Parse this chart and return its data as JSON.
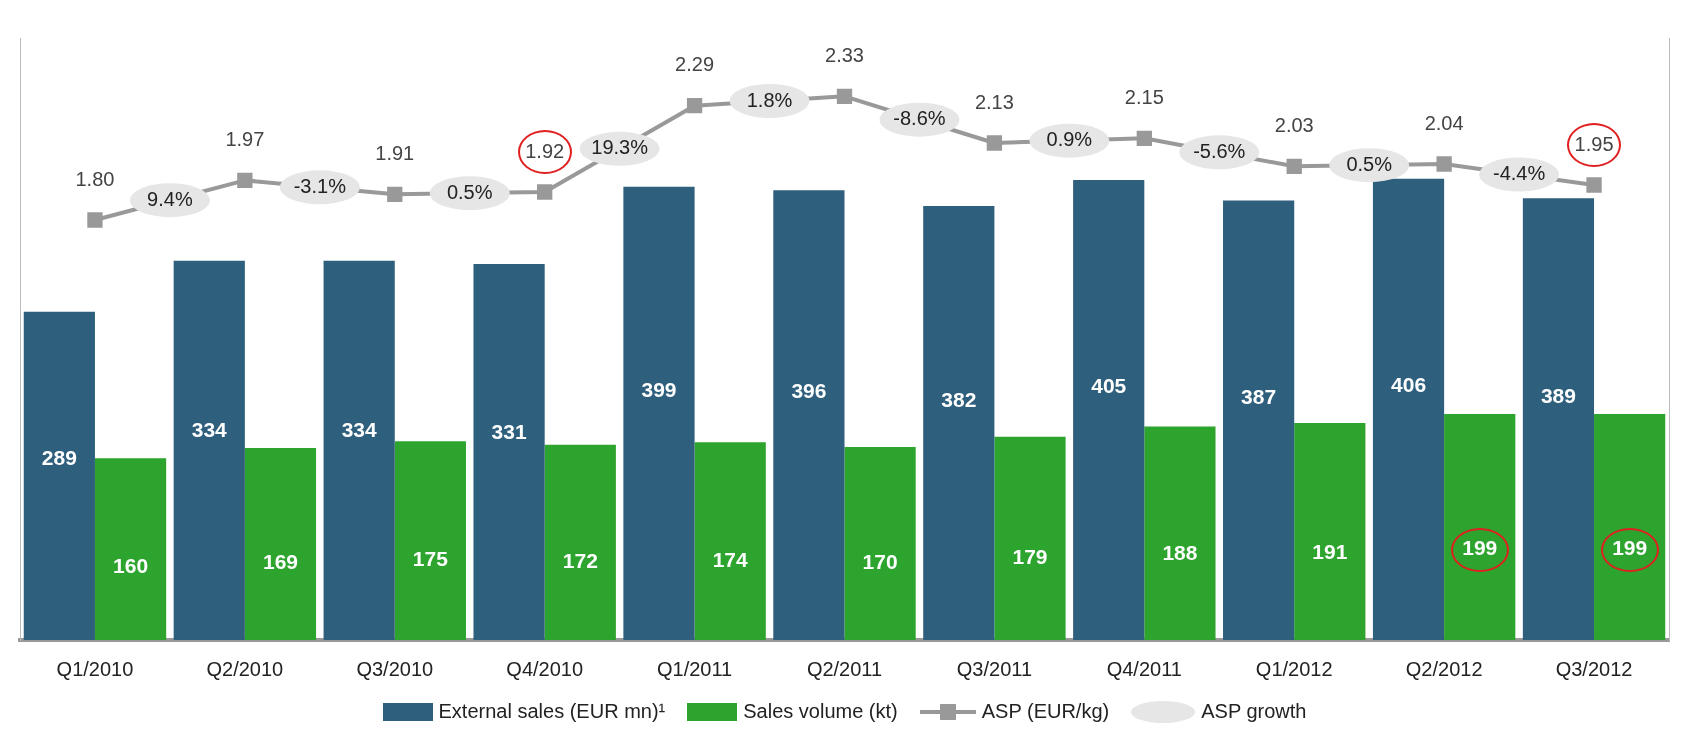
{
  "chart_data": {
    "type": "bar",
    "categories": [
      "Q1/2010",
      "Q2/2010",
      "Q3/2010",
      "Q4/2010",
      "Q1/2011",
      "Q2/2011",
      "Q3/2011",
      "Q4/2011",
      "Q1/2012",
      "Q2/2012",
      "Q3/2012"
    ],
    "series": [
      {
        "name": "External sales (EUR mn)¹",
        "color": "#2e5f7d",
        "values": [
          289,
          334,
          334,
          331,
          399,
          396,
          382,
          405,
          387,
          406,
          389
        ]
      },
      {
        "name": "Sales volume (kt)",
        "color": "#2ca42d",
        "values": [
          160,
          169,
          175,
          172,
          174,
          170,
          179,
          188,
          191,
          199,
          199
        ]
      },
      {
        "name": "ASP (EUR/kg)",
        "type": "line",
        "axis": "y2",
        "color": "#999999",
        "marker": "square",
        "values": [
          1.8,
          1.97,
          1.91,
          1.92,
          2.29,
          2.33,
          2.13,
          2.15,
          2.03,
          2.04,
          1.95
        ],
        "value_labels": [
          "1.80",
          "1.97",
          "1.91",
          "1.92",
          "2.29",
          "2.33",
          "2.13",
          "2.15",
          "2.03",
          "2.04",
          "1.95"
        ]
      },
      {
        "name": "ASP growth",
        "type": "other",
        "color": "#e6e6e6",
        "values": [
          null,
          null,
          null,
          null,
          null,
          null,
          null,
          null,
          null,
          null,
          null
        ],
        "value_labels": [
          null,
          "9.4%",
          "-3.1%",
          "0.5%",
          "19.3%",
          "1.8%",
          "-8.6%",
          "0.9%",
          "-5.6%",
          "0.5%",
          "-4.4%"
        ]
      }
    ],
    "ylim": [
      0,
      530
    ],
    "y2lim": [
      0,
      2.58
    ],
    "tick_labels": "x",
    "data_labels": true,
    "grid": false,
    "legend": "bottom"
  }
}
